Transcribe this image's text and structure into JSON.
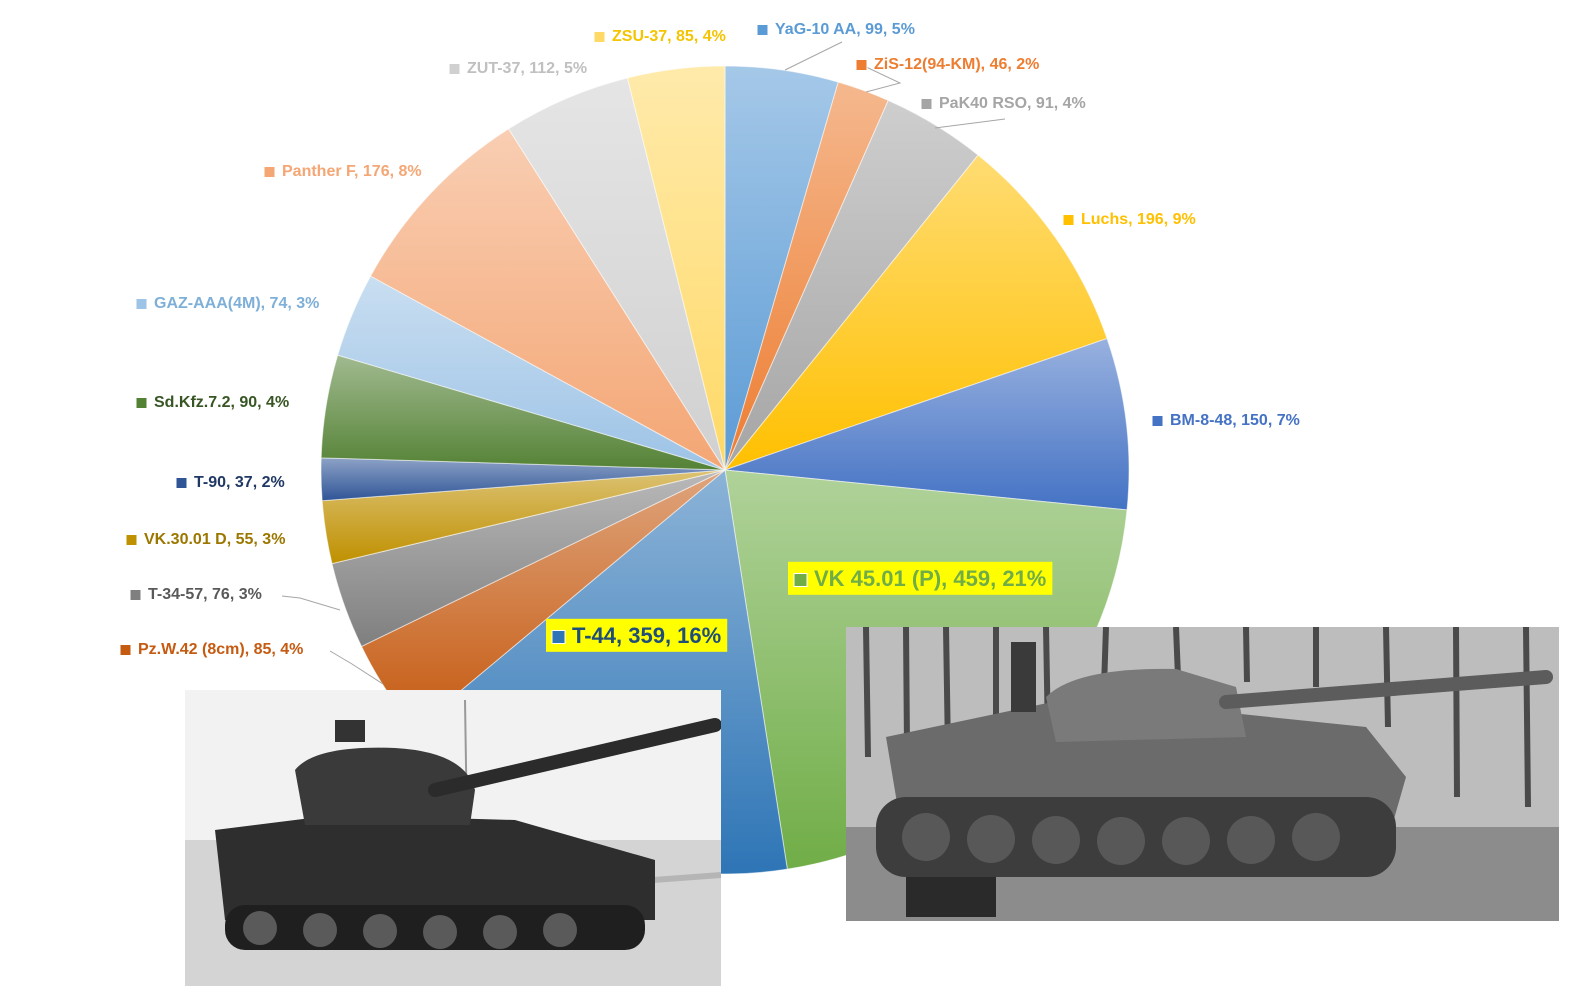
{
  "chart_data": {
    "type": "pie",
    "slices": [
      {
        "name": "YaG-10 AA",
        "value": 99,
        "percent": "5%",
        "color": "#5b9bd5",
        "text_color": "#5b9bd5",
        "highlight": false
      },
      {
        "name": "ZiS-12(94-KM)",
        "value": 46,
        "percent": "2%",
        "color": "#ed7d31",
        "text_color": "#ed7d31",
        "highlight": false
      },
      {
        "name": "PaK40 RSO",
        "value": 91,
        "percent": "4%",
        "color": "#a5a5a5",
        "text_color": "#a5a5a5",
        "highlight": false
      },
      {
        "name": "Luchs",
        "value": 196,
        "percent": "9%",
        "color": "#ffc000",
        "text_color": "#ffc000",
        "highlight": false
      },
      {
        "name": "BM-8-48",
        "value": 150,
        "percent": "7%",
        "color": "#4472c4",
        "text_color": "#4472c4",
        "highlight": false
      },
      {
        "name": "VK 45.01 (P)",
        "value": 459,
        "percent": "21%",
        "color": "#70ad47",
        "text_color": "#70ad47",
        "highlight": true
      },
      {
        "name": "T-44",
        "value": 359,
        "percent": "16%",
        "color": "#2e75b6",
        "text_color": "#1f4e79",
        "highlight": true
      },
      {
        "name": "Pz.W.42 (8cm)",
        "value": 85,
        "percent": "4%",
        "color": "#c55a11",
        "text_color": "#c55a11",
        "highlight": false
      },
      {
        "name": "T-34-57",
        "value": 76,
        "percent": "3%",
        "color": "#7f7f7f",
        "text_color": "#595959",
        "highlight": false
      },
      {
        "name": "VK.30.01 D",
        "value": 55,
        "percent": "3%",
        "color": "#bf9000",
        "text_color": "#9c7700",
        "highlight": false
      },
      {
        "name": "T-90",
        "value": 37,
        "percent": "2%",
        "color": "#2f5597",
        "text_color": "#203864",
        "highlight": false
      },
      {
        "name": "Sd.Kfz.7.2",
        "value": 90,
        "percent": "4%",
        "color": "#548235",
        "text_color": "#375623",
        "highlight": false
      },
      {
        "name": "GAZ-AAA(4M)",
        "value": 74,
        "percent": "3%",
        "color": "#9dc3e6",
        "text_color": "#7eafd8",
        "highlight": false
      },
      {
        "name": "Panther F",
        "value": 176,
        "percent": "8%",
        "color": "#f4a674",
        "text_color": "#f4a674",
        "highlight": false
      },
      {
        "name": "ZUT-37",
        "value": 112,
        "percent": "5%",
        "color": "#d0d0d0",
        "text_color": "#c0c0c0",
        "highlight": false
      },
      {
        "name": "ZSU-37",
        "value": 85,
        "percent": "4%",
        "color": "#ffd966",
        "text_color": "#f5c400",
        "highlight": false
      }
    ],
    "start_angle_deg": 0,
    "direction": "clockwise",
    "highlight_color": "#ffff00"
  },
  "photos": [
    {
      "subject": "T-44",
      "caption": ""
    },
    {
      "subject": "VK 45.01 (P)",
      "caption": ""
    }
  ]
}
